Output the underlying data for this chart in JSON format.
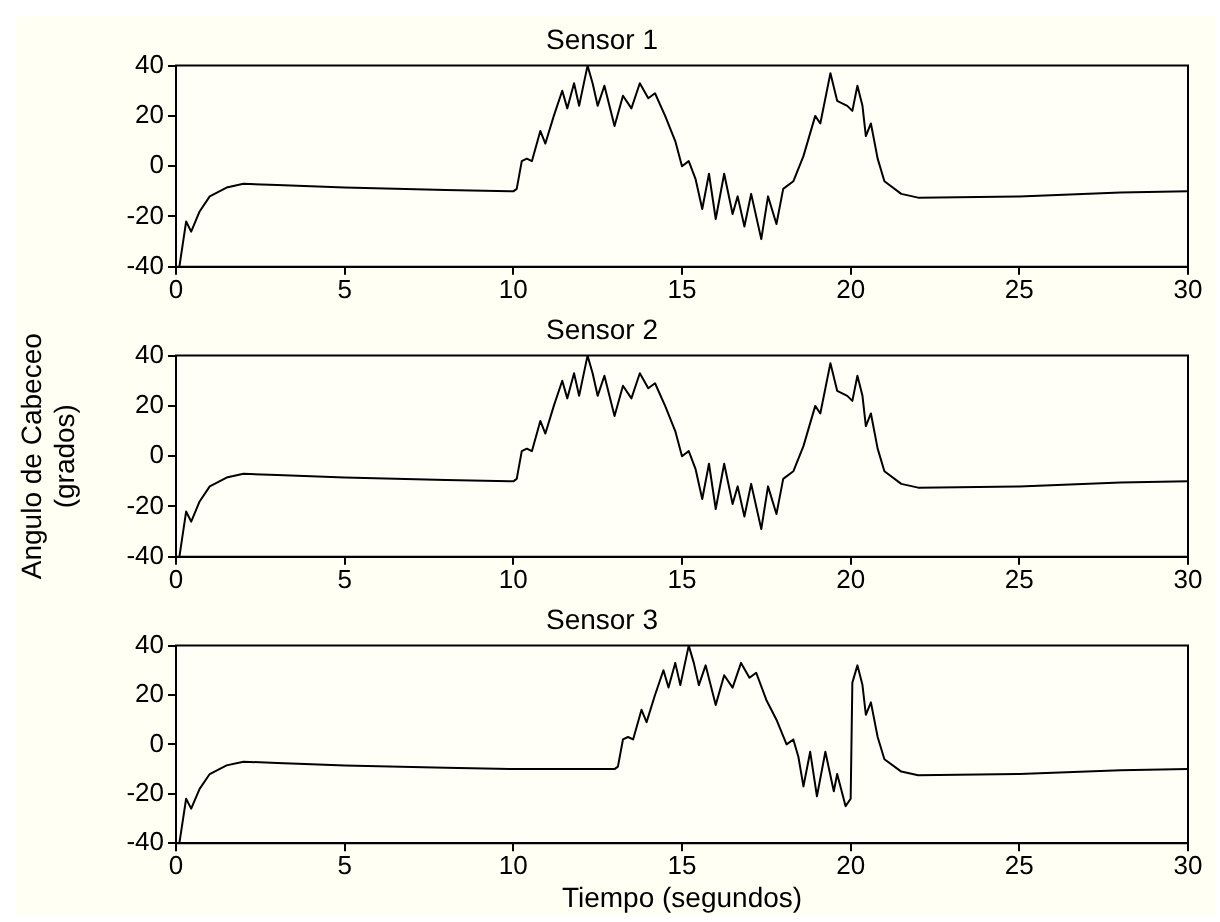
{
  "chart_data": [
    {
      "type": "line",
      "title": "Sensor 1",
      "xlim": [
        0,
        30
      ],
      "xticks": [
        0,
        5,
        10,
        15,
        20,
        25,
        30
      ],
      "ylim": [
        -40,
        40
      ],
      "yticks": [
        -40,
        -20,
        0,
        20,
        40
      ],
      "grid": false,
      "legend": false,
      "marker": "none",
      "line_style": "solid",
      "series": [
        {
          "color": "#000000",
          "x": [
            0.1,
            0.3,
            0.45,
            0.7,
            1,
            1.5,
            2,
            3,
            5,
            8,
            10,
            10.1,
            10.25,
            10.4,
            10.55,
            10.8,
            10.95,
            11.2,
            11.45,
            11.6,
            11.8,
            11.95,
            12.2,
            12.35,
            12.5,
            12.7,
            13,
            13.25,
            13.5,
            13.75,
            14,
            14.2,
            14.5,
            14.8,
            15,
            15.2,
            15.4,
            15.6,
            15.8,
            16,
            16.25,
            16.5,
            16.65,
            16.85,
            17.05,
            17.35,
            17.55,
            17.8,
            18,
            18.3,
            18.6,
            18.95,
            19.1,
            19.4,
            19.6,
            19.9,
            20.05,
            20.2,
            20.35,
            20.45,
            20.6,
            20.8,
            21,
            21.5,
            22,
            25,
            28,
            30
          ],
          "values": [
            -40,
            -22,
            -26,
            -18,
            -12,
            -8.5,
            -7,
            -7.5,
            -8.5,
            -9.5,
            -10,
            -9,
            2,
            3,
            2,
            14,
            9,
            20,
            30,
            23,
            33,
            24,
            40,
            33,
            24,
            32,
            16,
            28,
            23,
            33,
            27,
            29,
            20,
            10,
            0,
            2,
            -5,
            -17,
            -3,
            -21,
            -3,
            -19,
            -12,
            -24,
            -11,
            -29,
            -12,
            -23,
            -9,
            -6,
            4,
            20,
            17,
            37,
            26,
            24,
            22,
            32,
            24,
            12,
            17,
            3,
            -6,
            -11,
            -12.5,
            -12,
            -10.5,
            -10
          ]
        }
      ]
    },
    {
      "type": "line",
      "title": "Sensor 2",
      "ylabel": "Angulo de Cabeceo (grados)",
      "xlim": [
        0,
        30
      ],
      "xticks": [
        0,
        5,
        10,
        15,
        20,
        25,
        30
      ],
      "ylim": [
        -40,
        40
      ],
      "yticks": [
        -40,
        -20,
        0,
        20,
        40
      ],
      "grid": false,
      "legend": false,
      "marker": "none",
      "line_style": "solid",
      "series": [
        {
          "color": "#000000",
          "x": [
            0.1,
            0.3,
            0.45,
            0.7,
            1,
            1.5,
            2,
            3,
            5,
            8,
            10,
            10.1,
            10.25,
            10.4,
            10.55,
            10.8,
            10.95,
            11.2,
            11.45,
            11.6,
            11.8,
            11.95,
            12.2,
            12.35,
            12.5,
            12.7,
            13,
            13.25,
            13.5,
            13.75,
            14,
            14.2,
            14.5,
            14.8,
            15,
            15.2,
            15.4,
            15.6,
            15.8,
            16,
            16.25,
            16.5,
            16.65,
            16.85,
            17.05,
            17.35,
            17.55,
            17.8,
            18,
            18.3,
            18.6,
            18.95,
            19.1,
            19.4,
            19.6,
            19.9,
            20.05,
            20.2,
            20.35,
            20.45,
            20.6,
            20.8,
            21,
            21.5,
            22,
            25,
            28,
            30
          ],
          "values": [
            -40,
            -22,
            -26,
            -18,
            -12,
            -8.5,
            -7,
            -7.5,
            -8.5,
            -9.5,
            -10,
            -9,
            2,
            3,
            2,
            14,
            9,
            20,
            30,
            23,
            33,
            24,
            40,
            33,
            24,
            32,
            16,
            28,
            23,
            33,
            27,
            29,
            20,
            10,
            0,
            2,
            -5,
            -17,
            -3,
            -21,
            -3,
            -19,
            -12,
            -24,
            -11,
            -29,
            -12,
            -23,
            -9,
            -6,
            4,
            20,
            17,
            37,
            26,
            24,
            22,
            32,
            24,
            12,
            17,
            3,
            -6,
            -11,
            -12.5,
            -12,
            -10.5,
            -10
          ]
        }
      ]
    },
    {
      "type": "line",
      "title": "Sensor 3",
      "xlabel": "Tiempo (segundos)",
      "xlim": [
        0,
        30
      ],
      "xticks": [
        0,
        5,
        10,
        15,
        20,
        25,
        30
      ],
      "ylim": [
        -40,
        40
      ],
      "yticks": [
        -40,
        -20,
        0,
        20,
        40
      ],
      "grid": false,
      "legend": false,
      "marker": "none",
      "line_style": "solid",
      "series": [
        {
          "color": "#000000",
          "x": [
            0.1,
            0.3,
            0.45,
            0.7,
            1,
            1.5,
            2,
            3,
            5,
            8,
            10,
            13,
            13.1,
            13.25,
            13.4,
            13.55,
            13.8,
            13.95,
            14.2,
            14.45,
            14.6,
            14.8,
            14.95,
            15.2,
            15.35,
            15.5,
            15.7,
            16,
            16.25,
            16.5,
            16.75,
            17,
            17.2,
            17.5,
            17.8,
            18.1,
            18.3,
            18.45,
            18.6,
            18.8,
            19,
            19.25,
            19.5,
            19.6,
            19.85,
            20,
            20.05,
            20.2,
            20.35,
            20.45,
            20.6,
            20.8,
            21,
            21.5,
            22,
            25,
            28,
            30
          ],
          "values": [
            -40,
            -22,
            -26,
            -18,
            -12,
            -8.5,
            -7,
            -7.5,
            -8.5,
            -9.5,
            -10,
            -10,
            -9,
            2,
            3,
            2,
            14,
            9,
            20,
            30,
            23,
            33,
            24,
            40,
            33,
            24,
            32,
            16,
            28,
            23,
            33,
            27,
            29,
            18,
            10,
            0,
            2,
            -5,
            -17,
            -3,
            -21,
            -3,
            -19,
            -12,
            -25,
            -22,
            25,
            32,
            24,
            12,
            17,
            3,
            -6,
            -11,
            -12.5,
            -12,
            -10.5,
            -10
          ]
        }
      ]
    }
  ]
}
